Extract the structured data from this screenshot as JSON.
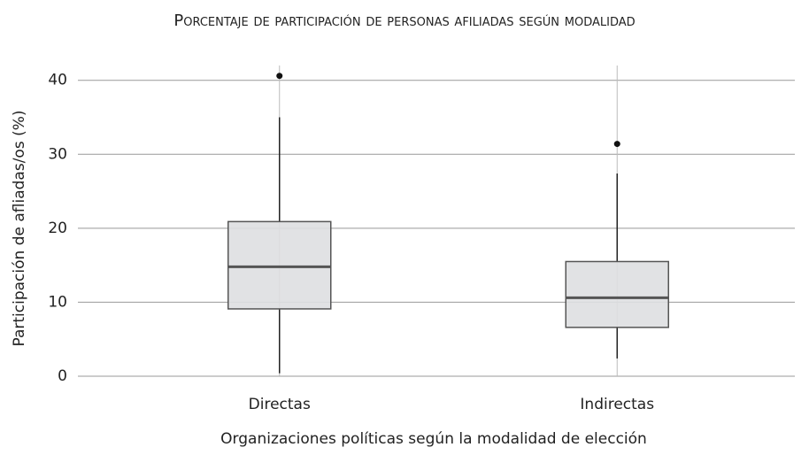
{
  "chart_data": {
    "type": "box",
    "title": "Porcentaje de participación de personas afiliadas según modalidad",
    "x_label": "Organizaciones políticas según la modalidad de elección",
    "y_label": "Participación de afliadas/os (%)",
    "categories": [
      "Directas",
      "Indirectas"
    ],
    "boxes": [
      {
        "min": 0.4,
        "q1": 9.1,
        "median": 14.8,
        "q3": 20.9,
        "max": 35,
        "outliers": [
          40.6
        ]
      },
      {
        "min": 2.4,
        "q1": 6.6,
        "median": 10.6,
        "q3": 15.5,
        "max": 27.4,
        "outliers": [
          31.4
        ]
      }
    ],
    "color": "#dedfe1",
    "edge_color": "#555555",
    "ylim": [
      0,
      42
    ],
    "yticks": [
      0,
      10,
      20,
      30,
      40
    ],
    "grid": true
  }
}
